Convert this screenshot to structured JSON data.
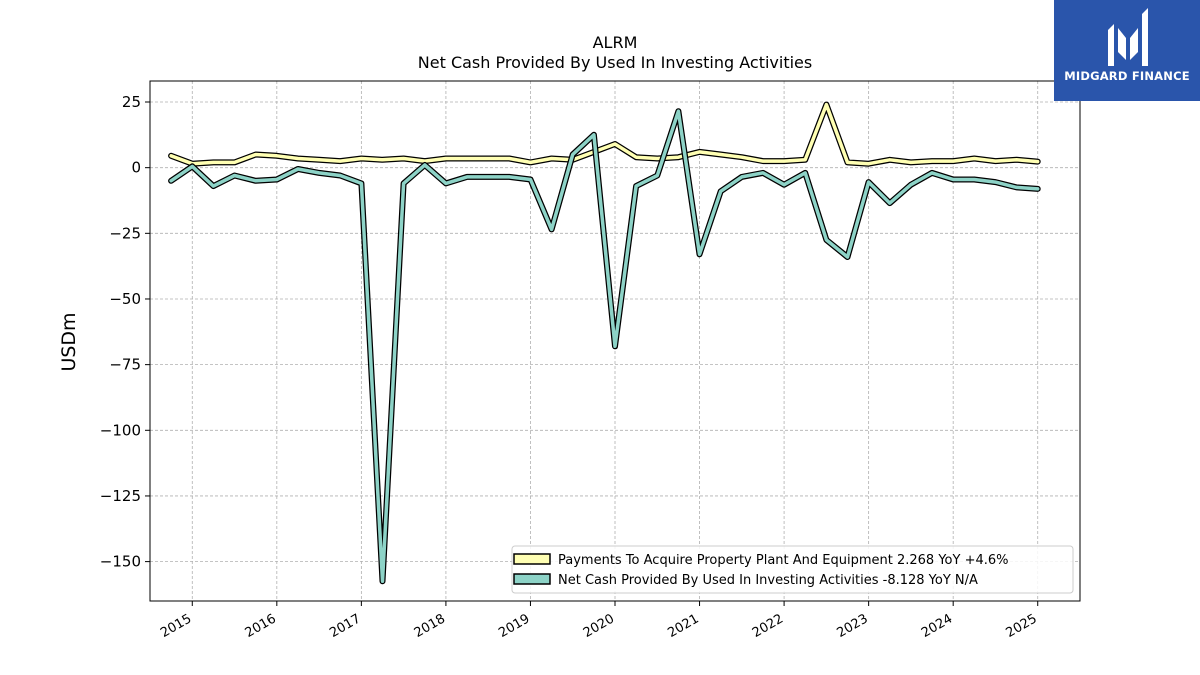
{
  "brand": {
    "name": "MIDGARD FINANCE",
    "color": "#2a55ab"
  },
  "chart_data": {
    "type": "line",
    "title": "ALRM",
    "subtitle": "Net Cash Provided By Used In Investing Activities",
    "ylabel": "USDm",
    "xlabel": "",
    "ylim": [
      -165,
      33
    ],
    "yticks": [
      25,
      0,
      -25,
      -50,
      -75,
      -100,
      -125,
      -150
    ],
    "ytick_labels": [
      "25",
      "0",
      "−25",
      "−50",
      "−75",
      "−100",
      "−125",
      "−150"
    ],
    "xlim": [
      2014.5,
      2025.5
    ],
    "xticks": [
      2015,
      2016,
      2017,
      2018,
      2019,
      2020,
      2021,
      2022,
      2023,
      2024,
      2025
    ],
    "xtick_labels": [
      "2015",
      "2016",
      "2017",
      "2018",
      "2019",
      "2020",
      "2021",
      "2022",
      "2023",
      "2024",
      "2025"
    ],
    "grid": true,
    "legend_position": "bottom-right",
    "series": [
      {
        "name": "Payments To Acquire Property Plant And Equipment",
        "legend_label": "Payments To Acquire Property Plant And Equipment  2.268 YoY +4.6%",
        "color": "#ffffb3",
        "x": [
          2014.75,
          2015.0,
          2015.25,
          2015.5,
          2015.75,
          2016.0,
          2016.25,
          2016.5,
          2016.75,
          2017.0,
          2017.25,
          2017.5,
          2017.75,
          2018.0,
          2018.25,
          2018.5,
          2018.75,
          2019.0,
          2019.25,
          2019.5,
          2019.75,
          2020.0,
          2020.25,
          2020.5,
          2020.75,
          2021.0,
          2021.25,
          2021.5,
          2021.75,
          2022.0,
          2022.25,
          2022.5,
          2022.75,
          2023.0,
          2023.25,
          2023.5,
          2023.75,
          2024.0,
          2024.25,
          2024.5,
          2024.75,
          2025.0
        ],
        "y": [
          4.5,
          1.5,
          2.0,
          2.0,
          5.0,
          4.5,
          3.5,
          3.0,
          2.5,
          3.5,
          3.0,
          3.5,
          2.5,
          3.5,
          3.5,
          3.5,
          3.5,
          2.0,
          3.5,
          3.0,
          6.0,
          9.0,
          4.0,
          3.5,
          4.0,
          6.0,
          5.0,
          4.0,
          2.5,
          2.5,
          3.0,
          24.0,
          2.0,
          1.5,
          3.0,
          2.0,
          2.5,
          2.5,
          3.5,
          2.5,
          3.0,
          2.3
        ]
      },
      {
        "name": "Net Cash Provided By Used In Investing Activities",
        "legend_label": "Net Cash Provided By Used In Investing Activities  -8.128 YoY N/A",
        "color": "#8dd3c7",
        "x": [
          2014.75,
          2015.0,
          2015.25,
          2015.5,
          2015.75,
          2016.0,
          2016.25,
          2016.5,
          2016.75,
          2017.0,
          2017.25,
          2017.5,
          2017.75,
          2018.0,
          2018.25,
          2018.5,
          2018.75,
          2019.0,
          2019.25,
          2019.5,
          2019.75,
          2020.0,
          2020.25,
          2020.5,
          2020.75,
          2021.0,
          2021.25,
          2021.5,
          2021.75,
          2022.0,
          2022.25,
          2022.5,
          2022.75,
          2023.0,
          2023.25,
          2023.5,
          2023.75,
          2024.0,
          2024.25,
          2024.5,
          2024.75,
          2025.0
        ],
        "y": [
          -5.0,
          0.5,
          -7.0,
          -3.0,
          -5.0,
          -4.5,
          -0.5,
          -2.0,
          -3.0,
          -6.0,
          -157.5,
          -6.0,
          1.0,
          -6.0,
          -3.5,
          -3.5,
          -3.5,
          -4.5,
          -23.5,
          5.0,
          12.5,
          -68.0,
          -7.0,
          -3.0,
          21.5,
          -33.0,
          -9.0,
          -3.5,
          -2.0,
          -6.5,
          -2.0,
          -27.5,
          -34.0,
          -5.5,
          -13.5,
          -6.5,
          -2.0,
          -4.5,
          -4.5,
          -5.5,
          -7.5,
          -8.1
        ]
      }
    ]
  }
}
